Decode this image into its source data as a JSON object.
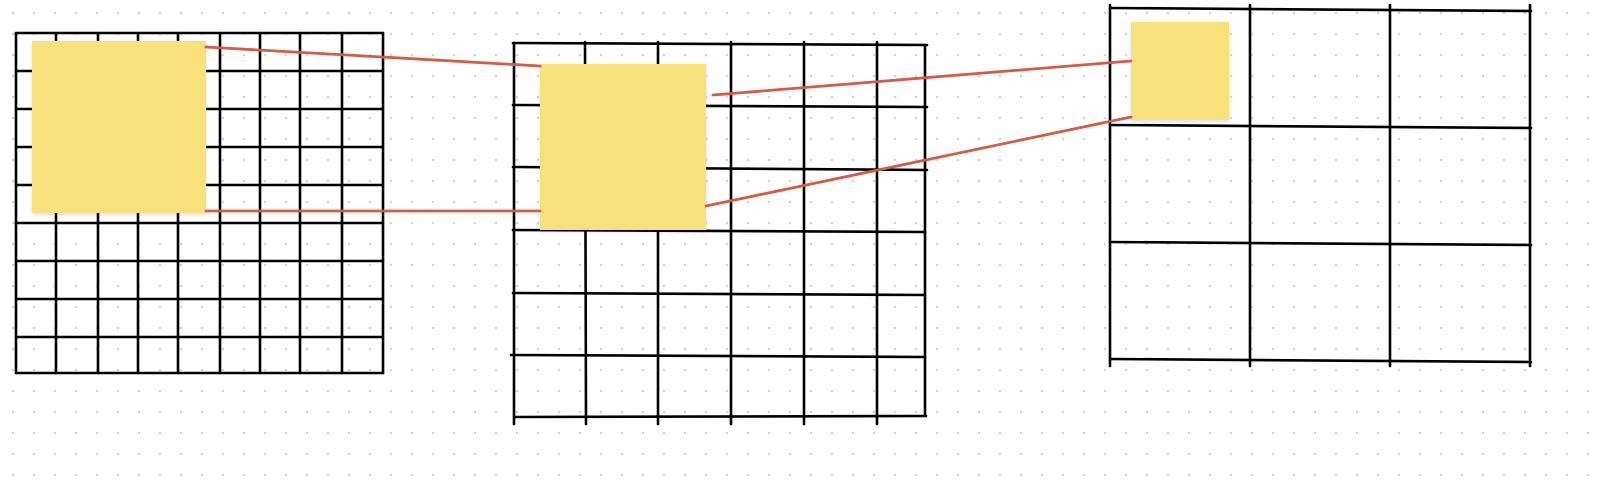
{
  "diagram": {
    "description_visible_text": "",
    "colors": {
      "background": "#ffffff",
      "dots": "#d6d6d6",
      "grid_lines": "#000000",
      "sticky_note": "#f8e07a",
      "sticky_shadow": "#e6cf6e",
      "connector": "#d65a45"
    },
    "grids": [
      {
        "name": "fine-grid",
        "rows": 9,
        "cols": 9
      },
      {
        "name": "medium-grid",
        "rows": 6,
        "cols": 6
      },
      {
        "name": "coarse-grid",
        "rows": 3,
        "cols": 3
      }
    ],
    "sticky_notes": [
      {
        "name": "sticky-note-1",
        "on_grid": "fine-grid"
      },
      {
        "name": "sticky-note-2",
        "on_grid": "medium-grid"
      },
      {
        "name": "sticky-note-3",
        "on_grid": "coarse-grid"
      }
    ],
    "connectors": [
      {
        "name": "connector-1-2-top",
        "from": "sticky-note-1",
        "to": "sticky-note-2"
      },
      {
        "name": "connector-1-2-bottom",
        "from": "sticky-note-1",
        "to": "sticky-note-2"
      },
      {
        "name": "connector-2-3-top",
        "from": "sticky-note-2",
        "to": "sticky-note-3"
      },
      {
        "name": "connector-2-3-bottom",
        "from": "sticky-note-2",
        "to": "sticky-note-3"
      }
    ]
  }
}
